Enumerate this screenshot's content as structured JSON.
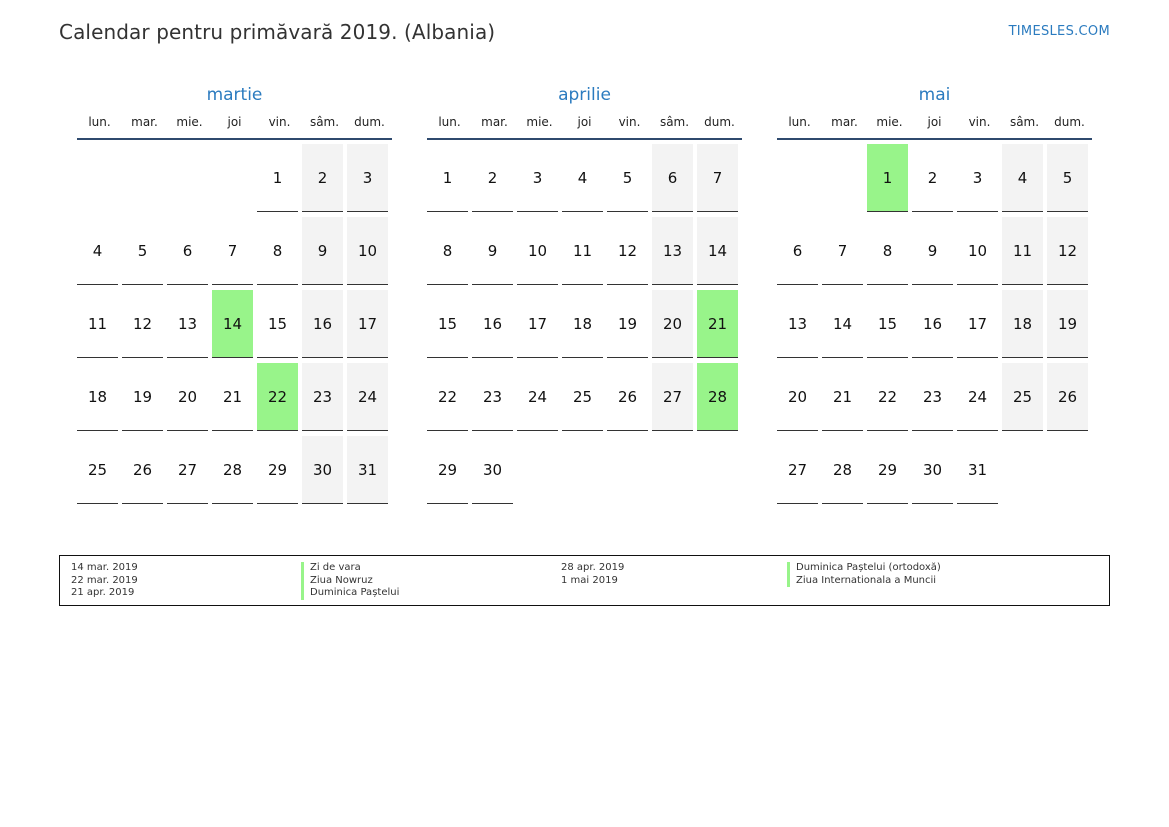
{
  "header": {
    "title": "Calendar pentru primăvară 2019. (Albania)",
    "site": "TIMESLES.COM"
  },
  "weekday_labels": [
    "lun.",
    "mar.",
    "mie.",
    "joi",
    "vin.",
    "sâm.",
    "dum."
  ],
  "months": [
    {
      "name": "martie",
      "weeks": [
        [
          "",
          "",
          "",
          "",
          "1",
          "2",
          "3"
        ],
        [
          "4",
          "5",
          "6",
          "7",
          "8",
          "9",
          "10"
        ],
        [
          "11",
          "12",
          "13",
          "14",
          "15",
          "16",
          "17"
        ],
        [
          "18",
          "19",
          "20",
          "21",
          "22",
          "23",
          "24"
        ],
        [
          "25",
          "26",
          "27",
          "28",
          "29",
          "30",
          "31"
        ]
      ],
      "holidays": [
        "14",
        "22"
      ]
    },
    {
      "name": "aprilie",
      "weeks": [
        [
          "1",
          "2",
          "3",
          "4",
          "5",
          "6",
          "7"
        ],
        [
          "8",
          "9",
          "10",
          "11",
          "12",
          "13",
          "14"
        ],
        [
          "15",
          "16",
          "17",
          "18",
          "19",
          "20",
          "21"
        ],
        [
          "22",
          "23",
          "24",
          "25",
          "26",
          "27",
          "28"
        ],
        [
          "29",
          "30",
          "",
          "",
          "",
          "",
          ""
        ]
      ],
      "holidays": [
        "21",
        "28"
      ]
    },
    {
      "name": "mai",
      "weeks": [
        [
          "",
          "",
          "1",
          "2",
          "3",
          "4",
          "5"
        ],
        [
          "6",
          "7",
          "8",
          "9",
          "10",
          "11",
          "12"
        ],
        [
          "13",
          "14",
          "15",
          "16",
          "17",
          "18",
          "19"
        ],
        [
          "20",
          "21",
          "22",
          "23",
          "24",
          "25",
          "26"
        ],
        [
          "27",
          "28",
          "29",
          "30",
          "31",
          "",
          ""
        ]
      ],
      "holidays": [
        "1"
      ]
    }
  ],
  "holiday_legend": {
    "left_dates": [
      "14 mar. 2019",
      "22 mar. 2019",
      "21 apr. 2019"
    ],
    "left_names": [
      "Zi de vara",
      "Ziua Nowruz",
      "Duminica Paștelui"
    ],
    "right_dates": [
      "28 apr. 2019",
      "1 mai 2019"
    ],
    "right_names": [
      "Duminica Paștelui (ortodoxă)",
      "Ziua Internationala a Muncii"
    ]
  },
  "colors": {
    "holiday": "#98f48a",
    "weekend": "#f3f3f3",
    "accent": "#2b7bbf"
  }
}
